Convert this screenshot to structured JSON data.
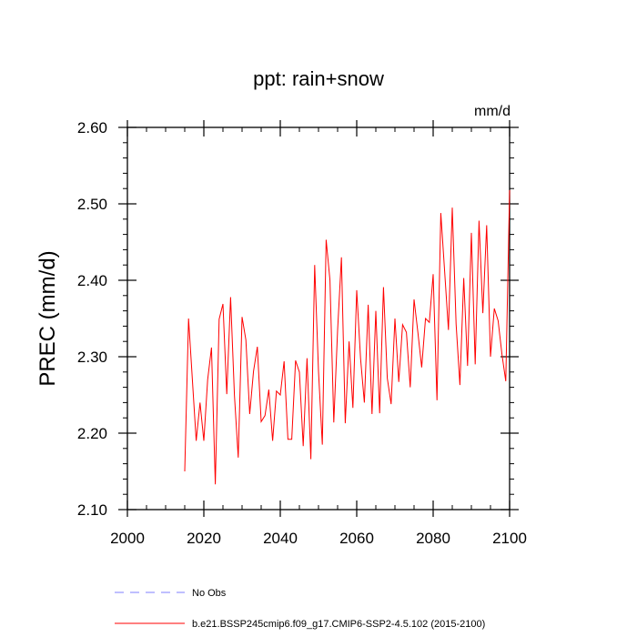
{
  "chart_data": {
    "type": "line",
    "title": "ppt: rain+snow",
    "units_label": "mm/d",
    "ylabel": "PREC  (mm/d)",
    "xlabel": "",
    "xlim": [
      2000,
      2100
    ],
    "ylim": [
      2.1,
      2.6
    ],
    "x_ticks": [
      2000,
      2020,
      2040,
      2060,
      2080,
      2100
    ],
    "x_tick_labels": [
      "2000",
      "2020",
      "2040",
      "2060",
      "2080",
      "2100"
    ],
    "y_ticks": [
      2.1,
      2.2,
      2.3,
      2.4,
      2.5,
      2.6
    ],
    "y_tick_labels": [
      "2.10",
      "2.20",
      "2.30",
      "2.40",
      "2.50",
      "2.60"
    ],
    "grid": false,
    "legend_position": "bottom-left",
    "series": [
      {
        "name": "b.e21.BSSP245cmip6.f09_g17.CMIP6-SSP2-4.5.102 (2015-2100)",
        "color": "#ff0000",
        "style": "solid",
        "x": [
          2015,
          2016,
          2017,
          2018,
          2019,
          2020,
          2021,
          2022,
          2023,
          2024,
          2025,
          2026,
          2027,
          2028,
          2029,
          2030,
          2031,
          2032,
          2033,
          2034,
          2035,
          2036,
          2037,
          2038,
          2039,
          2040,
          2041,
          2042,
          2043,
          2044,
          2045,
          2046,
          2047,
          2048,
          2049,
          2050,
          2051,
          2052,
          2053,
          2054,
          2055,
          2056,
          2057,
          2058,
          2059,
          2060,
          2061,
          2062,
          2063,
          2064,
          2065,
          2066,
          2067,
          2068,
          2069,
          2070,
          2071,
          2072,
          2073,
          2074,
          2075,
          2076,
          2077,
          2078,
          2079,
          2080,
          2081,
          2082,
          2083,
          2084,
          2085,
          2086,
          2087,
          2088,
          2089,
          2090,
          2091,
          2092,
          2093,
          2094,
          2095,
          2096,
          2097,
          2098,
          2099,
          2100
        ],
        "y": [
          2.15,
          2.35,
          2.27,
          2.19,
          2.24,
          2.19,
          2.27,
          2.312,
          2.133,
          2.349,
          2.369,
          2.251,
          2.378,
          2.25,
          2.168,
          2.352,
          2.322,
          2.225,
          2.281,
          2.313,
          2.215,
          2.223,
          2.257,
          2.19,
          2.255,
          2.25,
          2.294,
          2.192,
          2.192,
          2.295,
          2.28,
          2.183,
          2.298,
          2.166,
          2.42,
          2.281,
          2.185,
          2.453,
          2.4,
          2.214,
          2.335,
          2.43,
          2.213,
          2.32,
          2.233,
          2.387,
          2.298,
          2.24,
          2.368,
          2.225,
          2.36,
          2.226,
          2.391,
          2.272,
          2.238,
          2.35,
          2.267,
          2.342,
          2.332,
          2.26,
          2.375,
          2.332,
          2.286,
          2.35,
          2.345,
          2.408,
          2.243,
          2.488,
          2.412,
          2.335,
          2.495,
          2.343,
          2.263,
          2.403,
          2.288,
          2.462,
          2.29,
          2.478,
          2.357,
          2.472,
          2.3,
          2.363,
          2.347,
          2.303,
          2.268,
          2.518
        ]
      },
      {
        "name": "No Obs",
        "color": "#7f7fff",
        "style": "dashed",
        "x": [],
        "y": []
      }
    ]
  }
}
